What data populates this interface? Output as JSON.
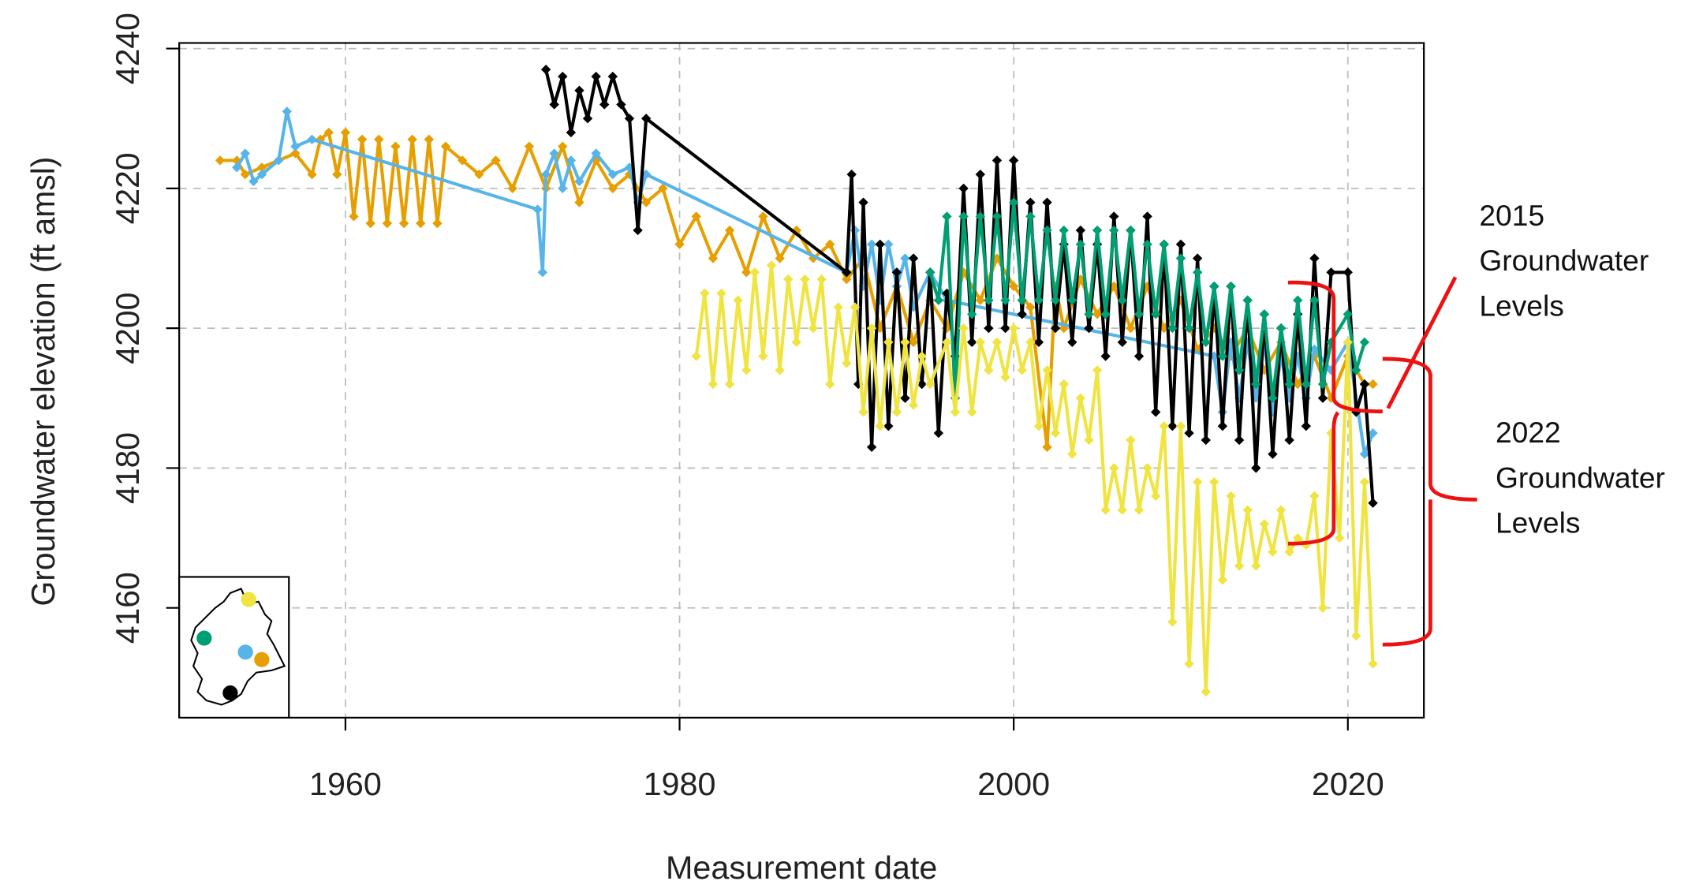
{
  "chart_data": {
    "type": "line",
    "x_label": "Measurement date",
    "y_label": "Groundwater elevation (ft amsl)",
    "xlim": [
      1950.05,
      2024.55
    ],
    "ylim": [
      4144.3,
      4240.8
    ],
    "xticks": [
      1960,
      1980,
      2000,
      2020
    ],
    "yticks": [
      4160,
      4180,
      4200,
      4220,
      4240
    ],
    "grid": true,
    "series": [
      {
        "color": "#e69f00",
        "x": [
          1952.5,
          1953.5,
          1954,
          1955,
          1956,
          1957,
          1958,
          1958.5,
          1959,
          1959.5,
          1960,
          1960.5,
          1961,
          1961.5,
          1962,
          1962.5,
          1963,
          1963.5,
          1964,
          1964.5,
          1965,
          1965.5,
          1966,
          1967,
          1968,
          1969,
          1970,
          1971,
          1972,
          1973,
          1974,
          1975,
          1976,
          1977,
          1978,
          1979,
          1980,
          1981,
          1982,
          1983,
          1984,
          1985,
          1986,
          1987,
          1988,
          1989,
          1990,
          1991,
          1992,
          1993,
          1994,
          1995,
          1996,
          1997,
          1998,
          1999,
          2000,
          2001,
          2002,
          2002.5,
          2003,
          2004,
          2005,
          2006,
          2007,
          2008,
          2009,
          2010,
          2011,
          2012,
          2013,
          2014,
          2015,
          2016,
          2017,
          2018,
          2019,
          2020,
          2021,
          2021.5
        ],
        "values": [
          4224,
          4224,
          4222,
          4223,
          4224,
          4225,
          4222,
          4227,
          4228,
          4222,
          4228,
          4216,
          4227,
          4215,
          4227,
          4215,
          4226,
          4215,
          4227,
          4215,
          4227,
          4215,
          4226,
          4224,
          4222,
          4224,
          4220,
          4226,
          4220,
          4226,
          4218,
          4224,
          4220,
          4222,
          4218,
          4220,
          4212,
          4216,
          4210,
          4214,
          4208,
          4216,
          4210,
          4214,
          4210,
          4212,
          4207,
          4210,
          4200,
          4206,
          4198,
          4204,
          4200,
          4208,
          4204,
          4210,
          4206,
          4203,
          4183,
          4206,
          4200,
          4207,
          4202,
          4206,
          4200,
          4206,
          4200,
          4204,
          4197,
          4200,
          4196,
          4200,
          4194,
          4198,
          4192,
          4196,
          4190,
          4196,
          4192,
          4192
        ]
      },
      {
        "color": "#56b4e9",
        "x": [
          1953.5,
          1954,
          1954.5,
          1955,
          1956,
          1956.5,
          1957,
          1958,
          1971.5,
          1971.8,
          1972,
          1972.5,
          1973,
          1973.5,
          1974,
          1975,
          1976,
          1977,
          1977.5,
          1978,
          1990,
          1990.5,
          1991,
          1991.5,
          1992,
          1992.5,
          1993,
          1993.5,
          1994,
          1995,
          1996,
          2012,
          2012.5,
          2013,
          2013.5,
          2014,
          2014.5,
          2015,
          2015.5,
          2016,
          2016.5,
          2017,
          2017.5,
          2018,
          2019,
          2020,
          2021,
          2021.5
        ],
        "values": [
          4223,
          4225,
          4221,
          4222,
          4224,
          4231,
          4226,
          4227,
          4217,
          4208,
          4222,
          4225,
          4220,
          4224,
          4221,
          4225,
          4222,
          4223,
          4218,
          4222,
          4208,
          4214,
          4206,
          4212,
          4204,
          4212,
          4206,
          4210,
          4203,
          4208,
          4204,
          4196,
          4188,
          4198,
          4190,
          4198,
          4190,
          4198,
          4188,
          4196,
          4190,
          4196,
          4190,
          4197,
          4194,
          4198,
          4182,
          4185
        ]
      },
      {
        "color": "#000000",
        "x": [
          1972,
          1972.5,
          1973,
          1973.5,
          1974,
          1974.5,
          1975,
          1975.5,
          1976,
          1976.5,
          1977,
          1977.5,
          1978,
          1990,
          1990.3,
          1990.7,
          1991,
          1991.5,
          1992,
          1992.5,
          1993,
          1993.5,
          1994,
          1994.5,
          1995,
          1995.5,
          1996,
          1996.5,
          1997,
          1997.5,
          1998,
          1998.5,
          1999,
          1999.5,
          2000,
          2000.5,
          2001,
          2001.5,
          2002,
          2002.5,
          2003,
          2003.5,
          2004,
          2004.5,
          2005,
          2005.5,
          2006,
          2006.5,
          2007,
          2007.5,
          2008,
          2008.5,
          2009,
          2009.5,
          2010,
          2010.5,
          2011,
          2011.5,
          2012,
          2012.5,
          2013,
          2013.5,
          2014,
          2014.5,
          2015,
          2015.5,
          2016,
          2016.5,
          2017,
          2017.5,
          2018,
          2018.5,
          2019,
          2020,
          2020.5,
          2021,
          2021.5
        ],
        "values": [
          4237,
          4232,
          4236,
          4228,
          4234,
          4230,
          4236,
          4232,
          4236,
          4232,
          4230,
          4214,
          4230,
          4208,
          4222,
          4192,
          4218,
          4183,
          4212,
          4186,
          4208,
          4190,
          4210,
          4192,
          4208,
          4185,
          4205,
          4196,
          4220,
          4198,
          4222,
          4200,
          4224,
          4200,
          4224,
          4202,
          4218,
          4198,
          4218,
          4200,
          4212,
          4198,
          4214,
          4200,
          4212,
          4196,
          4216,
          4198,
          4214,
          4196,
          4216,
          4188,
          4212,
          4186,
          4212,
          4185,
          4210,
          4184,
          4206,
          4186,
          4206,
          4184,
          4204,
          4180,
          4202,
          4182,
          4200,
          4184,
          4202,
          4186,
          4210,
          4190,
          4208,
          4208,
          4188,
          4192,
          4175
        ]
      },
      {
        "color": "#009e73",
        "x": [
          1995,
          1995.5,
          1996,
          1996.5,
          1997,
          1997.5,
          1998,
          1998.5,
          1999,
          1999.5,
          2000,
          2000.5,
          2001,
          2001.5,
          2002,
          2002.5,
          2003,
          2003.5,
          2004,
          2004.5,
          2005,
          2005.5,
          2006,
          2006.5,
          2007,
          2007.5,
          2008,
          2008.5,
          2009,
          2009.5,
          2010,
          2010.5,
          2011,
          2011.5,
          2012,
          2012.5,
          2013,
          2013.5,
          2014,
          2014.5,
          2015,
          2015.5,
          2016,
          2016.5,
          2017,
          2017.5,
          2018,
          2018.5,
          2019,
          2020,
          2020.5,
          2021
        ],
        "values": [
          4208,
          4204,
          4216,
          4190,
          4216,
          4202,
          4216,
          4204,
          4216,
          4204,
          4218,
          4204,
          4216,
          4204,
          4214,
          4204,
          4214,
          4204,
          4212,
          4202,
          4214,
          4202,
          4214,
          4204,
          4214,
          4202,
          4212,
          4202,
          4212,
          4200,
          4210,
          4200,
          4208,
          4198,
          4206,
          4196,
          4206,
          4194,
          4204,
          4192,
          4202,
          4190,
          4200,
          4192,
          4204,
          4192,
          4204,
          4192,
          4198,
          4202,
          4194,
          4198
        ]
      },
      {
        "color": "#f0e442",
        "x": [
          1981,
          1981.5,
          1982,
          1982.5,
          1983,
          1983.5,
          1984,
          1984.5,
          1985,
          1985.5,
          1986,
          1986.5,
          1987,
          1987.5,
          1988,
          1988.5,
          1989,
          1989.5,
          1990,
          1990.5,
          1991,
          1991.5,
          1992,
          1992.5,
          1993,
          1993.5,
          1994,
          1994.5,
          1995,
          1996,
          1996.5,
          1997,
          1997.5,
          1998,
          1998.5,
          1999,
          1999.5,
          2000,
          2000.5,
          2001,
          2001.5,
          2002,
          2002.5,
          2003,
          2003.5,
          2004,
          2004.5,
          2005,
          2005.5,
          2006,
          2006.5,
          2007,
          2007.5,
          2008,
          2008.5,
          2009,
          2009.5,
          2010,
          2010.5,
          2011,
          2011.5,
          2012,
          2012.5,
          2013,
          2013.5,
          2014,
          2014.5,
          2015,
          2015.5,
          2016,
          2016.5,
          2017,
          2017.5,
          2018,
          2018.5,
          2019,
          2019.5,
          2020,
          2020.5,
          2021,
          2021.5
        ],
        "values": [
          4196,
          4205,
          4192,
          4205,
          4192,
          4204,
          4194,
          4208,
          4196,
          4209,
          4194,
          4207,
          4198,
          4207,
          4200,
          4207,
          4192,
          4203,
          4195,
          4203,
          4188,
          4200,
          4186,
          4198,
          4188,
          4198,
          4189,
          4196,
          4192,
          4198,
          4188,
          4200,
          4188,
          4198,
          4194,
          4198,
          4193,
          4200,
          4194,
          4198,
          4186,
          4194,
          4185,
          4192,
          4182,
          4190,
          4184,
          4194,
          4174,
          4180,
          4174,
          4184,
          4174,
          4180,
          4176,
          4186,
          4158,
          4186,
          4152,
          4178,
          4148,
          4178,
          4164,
          4176,
          4166,
          4174,
          4166,
          4172,
          4168,
          4174,
          4168,
          4170,
          4169,
          4176,
          4160,
          4185,
          4170,
          4198,
          4156,
          4178,
          4152
        ]
      }
    ],
    "annotations": [
      {
        "lines": [
          "2015",
          "Groundwater",
          "Levels"
        ]
      },
      {
        "lines": [
          "2022",
          "Groundwater",
          "Levels"
        ]
      }
    ]
  }
}
